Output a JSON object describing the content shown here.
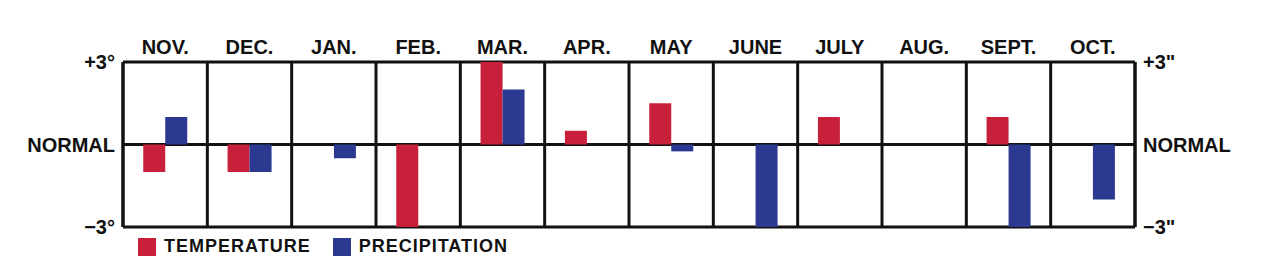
{
  "chart_data": {
    "type": "bar",
    "categories": [
      "NOV.",
      "DEC.",
      "JAN.",
      "FEB.",
      "MAR.",
      "APR.",
      "MAY",
      "JUNE",
      "JULY",
      "AUG.",
      "SEPT.",
      "OCT."
    ],
    "series": [
      {
        "name": "TEMPERATURE",
        "color": "#c8203a",
        "values": [
          -1,
          -1,
          0,
          -3,
          3,
          0.5,
          1.5,
          0,
          1,
          0,
          1,
          0
        ]
      },
      {
        "name": "PRECIPITATION",
        "color": "#2b3990",
        "axis": "y2",
        "values": [
          1,
          -1,
          -0.5,
          0,
          2,
          0,
          -0.25,
          -3,
          0,
          0,
          -3,
          -2
        ]
      }
    ],
    "ylim": [
      -3,
      3
    ],
    "yticks": [
      {
        "value": -3,
        "label": "−3°"
      },
      {
        "value": 0,
        "label": "NORMAL"
      },
      {
        "value": 3,
        "label": "+3°"
      }
    ],
    "y2lim": [
      -3,
      3
    ],
    "y2ticks": [
      {
        "value": -3,
        "label": "−3\""
      },
      {
        "value": 0,
        "label": "NORMAL"
      },
      {
        "value": 3,
        "label": "+3\""
      }
    ],
    "grid": true,
    "legend": "bottom"
  }
}
